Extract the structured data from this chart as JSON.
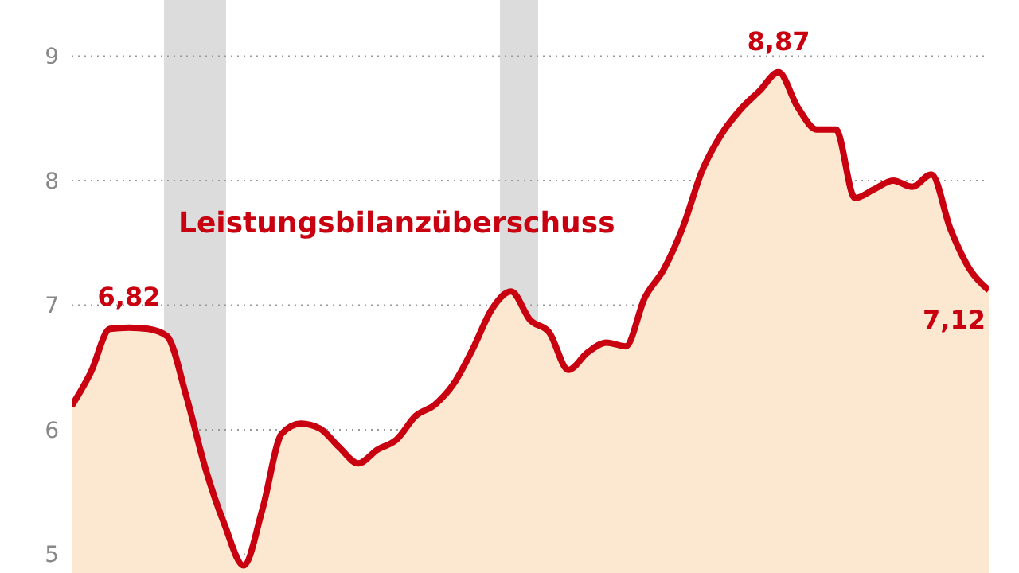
{
  "chart_data": {
    "type": "area",
    "categories": [
      null,
      null,
      null,
      null,
      null,
      null,
      null,
      null,
      null,
      null,
      null,
      null,
      null,
      null,
      null,
      null,
      null,
      null,
      null,
      null,
      null,
      null,
      null,
      null,
      null,
      null,
      null,
      null,
      null,
      null,
      null,
      null,
      null,
      null,
      null,
      null,
      null,
      null,
      null,
      null,
      null,
      null,
      null,
      null,
      null,
      null,
      null,
      null,
      null
    ],
    "series": [
      {
        "name": "Leistungsbilanzüberschuss",
        "color": "#c8000f",
        "values": [
          6.19,
          6.46,
          6.81,
          6.82,
          6.81,
          6.75,
          6.27,
          5.69,
          5.24,
          4.91,
          5.37,
          5.97,
          6.05,
          6.01,
          5.86,
          5.73,
          5.84,
          5.92,
          6.11,
          6.2,
          6.37,
          6.65,
          6.97,
          7.11,
          6.88,
          6.78,
          6.48,
          6.62,
          6.7,
          6.67,
          7.06,
          7.29,
          7.63,
          8.08,
          8.37,
          8.57,
          8.72,
          8.87,
          8.59,
          8.41,
          8.41,
          7.86,
          7.93,
          8.0,
          7.95,
          8.05,
          7.61,
          7.29,
          7.12
        ],
        "value_labels": [
          null,
          null,
          null,
          "6,82",
          null,
          null,
          null,
          null,
          null,
          null,
          null,
          null,
          null,
          null,
          null,
          null,
          null,
          null,
          null,
          null,
          null,
          null,
          null,
          null,
          null,
          null,
          null,
          null,
          null,
          null,
          null,
          null,
          null,
          null,
          null,
          null,
          null,
          "8,87",
          null,
          null,
          null,
          null,
          null,
          null,
          null,
          null,
          null,
          null,
          "7,12"
        ]
      }
    ],
    "ylim": [
      4.85,
      9.45
    ],
    "yticks": [
      5,
      6,
      7,
      8,
      9
    ],
    "grid": "y",
    "tick_labels": "y",
    "marker": "none",
    "line_style": "solid"
  }
}
